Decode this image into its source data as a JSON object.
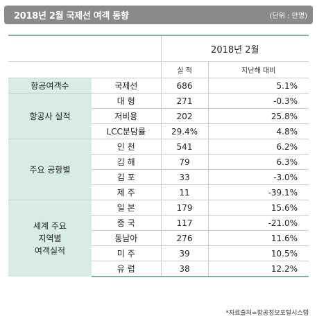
{
  "header": {
    "title": "2018년 2월 국제선 여객 동향",
    "unit": "(단위 : 만명)"
  },
  "table": {
    "period": "2018년  2월",
    "col_actual": "실  적",
    "col_change": "지난해 대비",
    "groups": [
      {
        "label": "항공여객수",
        "rows": [
          {
            "cat": "국제선",
            "actual": "686",
            "change": "5.1%"
          }
        ]
      },
      {
        "label": "항공사 실적",
        "rows": [
          {
            "cat": "대  형",
            "actual": "271",
            "change": "-0.3%"
          },
          {
            "cat": "저비용",
            "actual": "202",
            "change": "25.8%"
          },
          {
            "cat": "LCC분담률",
            "actual": "29.4%",
            "change": "4.8%"
          }
        ]
      },
      {
        "label": "주요 공항별",
        "rows": [
          {
            "cat": "인  천",
            "actual": "541",
            "change": "6.2%"
          },
          {
            "cat": "김  해",
            "actual": "79",
            "change": "6.3%"
          },
          {
            "cat": "김  포",
            "actual": "33",
            "change": "-3.0%"
          },
          {
            "cat": "제  주",
            "actual": "11",
            "change": "-39.1%"
          }
        ]
      },
      {
        "label_lines": [
          "세계 주요",
          "지역별",
          "여객실적"
        ],
        "rows": [
          {
            "cat": "일  본",
            "actual": "179",
            "change": "15.6%"
          },
          {
            "cat": "중  국",
            "actual": "117",
            "change": "-21.0%"
          },
          {
            "cat": "동남아",
            "actual": "276",
            "change": "11.6%"
          },
          {
            "cat": "미  주",
            "actual": "39",
            "change": "10.5%"
          },
          {
            "cat": "유  럽",
            "actual": "38",
            "change": "12.2%"
          }
        ]
      }
    ]
  },
  "source": "*자료출처=항공정보포털시스템"
}
